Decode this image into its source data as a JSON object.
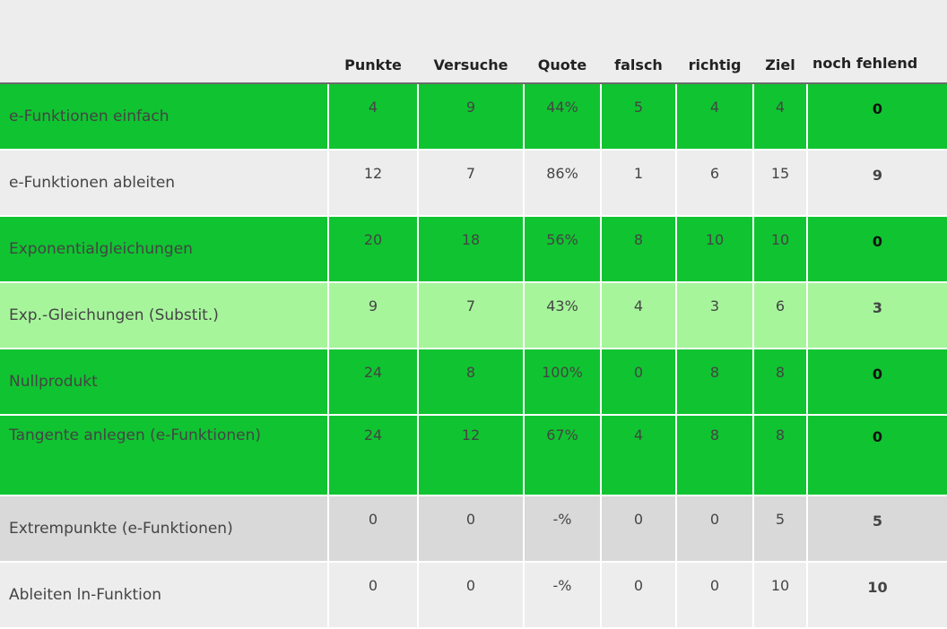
{
  "colors": {
    "done": "#0fc430",
    "partial": "#a6f59b",
    "none": "#ededed",
    "grey": "#d9d9d9"
  },
  "headers": {
    "topic": "",
    "punkte": "Punkte",
    "versuche": "Versuche",
    "quote": "Quote",
    "falsch": "falsch",
    "richtig": "richtig",
    "ziel": "Ziel",
    "noch": "noch fehlend"
  },
  "rows": [
    {
      "topic": "e-Funktionen einfach",
      "punkte": "4",
      "versuche": "9",
      "quote": "44%",
      "falsch": "5",
      "richtig": "4",
      "ziel": "4",
      "noch": "0",
      "status": "done"
    },
    {
      "topic": "e-Funktionen ableiten",
      "punkte": "12",
      "versuche": "7",
      "quote": "86%",
      "falsch": "1",
      "richtig": "6",
      "ziel": "15",
      "noch": "9",
      "status": "none"
    },
    {
      "topic": "Exponentialgleichungen",
      "punkte": "20",
      "versuche": "18",
      "quote": "56%",
      "falsch": "8",
      "richtig": "10",
      "ziel": "10",
      "noch": "0",
      "status": "done"
    },
    {
      "topic": "Exp.-Gleichungen (Substit.)",
      "punkte": "9",
      "versuche": "7",
      "quote": "43%",
      "falsch": "4",
      "richtig": "3",
      "ziel": "6",
      "noch": "3",
      "status": "partial"
    },
    {
      "topic": "Nullprodukt",
      "punkte": "24",
      "versuche": "8",
      "quote": "100%",
      "falsch": "0",
      "richtig": "8",
      "ziel": "8",
      "noch": "0",
      "status": "done"
    },
    {
      "topic": "Tangente anlegen (e-Funktionen)",
      "punkte": "24",
      "versuche": "12",
      "quote": "67%",
      "falsch": "4",
      "richtig": "8",
      "ziel": "8",
      "noch": "0",
      "status": "done"
    },
    {
      "topic": "Extrempunkte (e-Funktionen)",
      "punkte": "0",
      "versuche": "0",
      "quote": "-%",
      "falsch": "0",
      "richtig": "0",
      "ziel": "5",
      "noch": "5",
      "status": "grey"
    },
    {
      "topic": "Ableiten ln-Funktion",
      "punkte": "0",
      "versuche": "0",
      "quote": "-%",
      "falsch": "0",
      "richtig": "0",
      "ziel": "10",
      "noch": "10",
      "status": "none"
    }
  ]
}
